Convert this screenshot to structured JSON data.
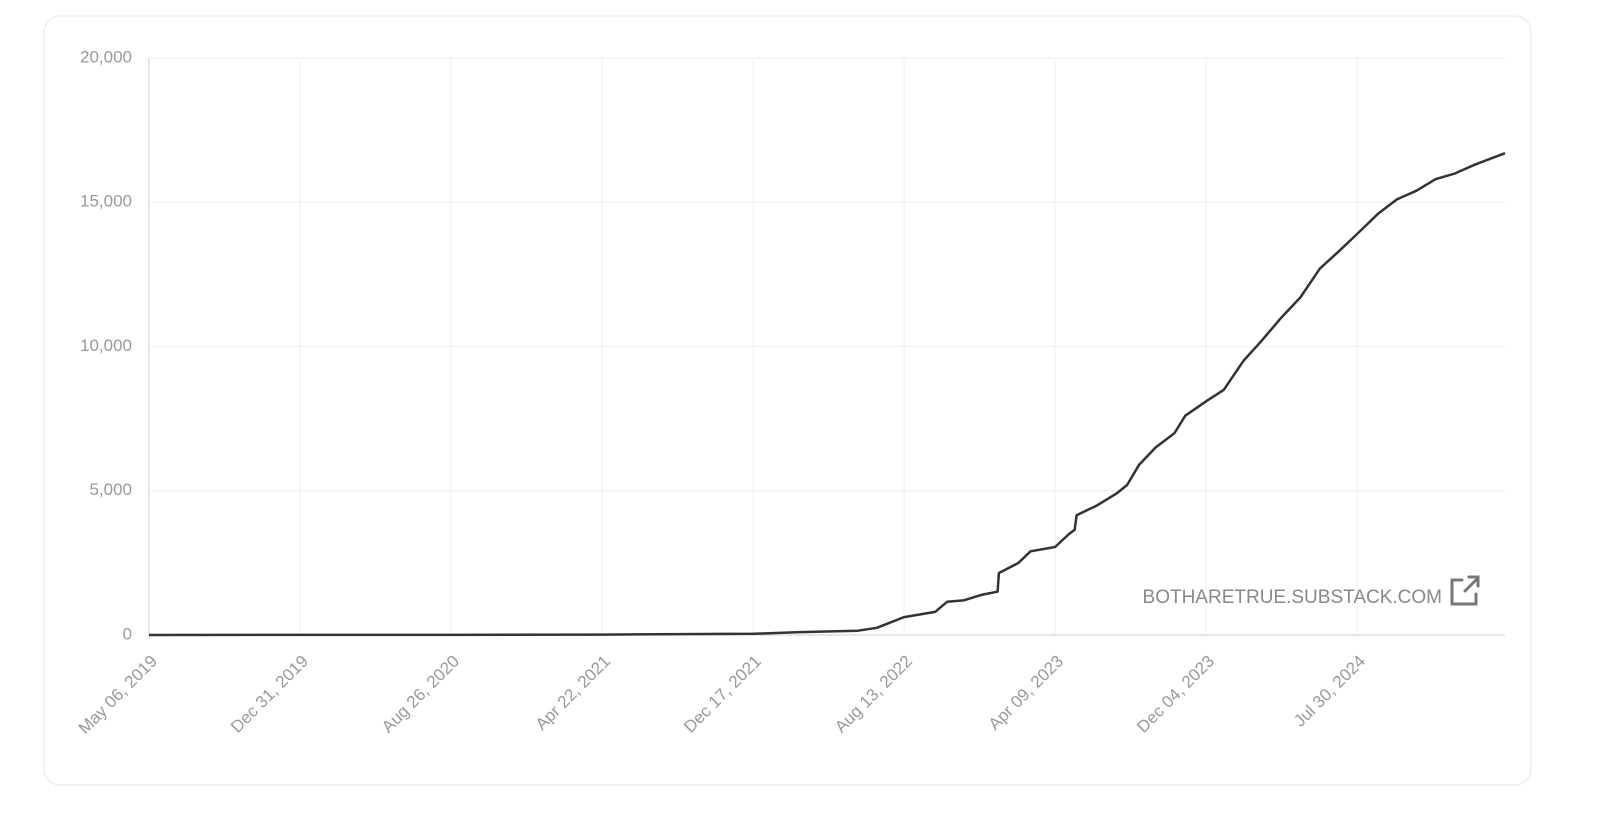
{
  "chart_data": {
    "type": "line",
    "annotation": "BOTHARETRUE.SUBSTACK.COM",
    "series": [
      {
        "color": "#333333",
        "x": [
          "2019-05-06",
          "2020-01-01",
          "2020-08-26",
          "2021-04-22",
          "2021-12-17",
          "2022-03-01",
          "2022-06-01",
          "2022-07-01",
          "2022-08-13",
          "2022-10-01",
          "2022-10-20",
          "2022-11-15",
          "2022-12-15",
          "2023-01-08",
          "2023-01-10",
          "2023-02-10",
          "2023-03-01",
          "2023-04-09",
          "2023-05-01",
          "2023-05-10",
          "2023-05-13",
          "2023-06-15",
          "2023-07-15",
          "2023-08-01",
          "2023-08-20",
          "2023-09-15",
          "2023-10-15",
          "2023-11-01",
          "2023-12-04",
          "2024-01-01",
          "2024-02-01",
          "2024-03-01",
          "2024-04-01",
          "2024-05-01",
          "2024-06-01",
          "2024-07-01",
          "2024-07-30",
          "2024-09-01",
          "2024-10-01",
          "2024-11-01",
          "2024-12-01",
          "2025-01-01",
          "2025-02-01",
          "2025-03-21"
        ],
        "values": [
          0,
          2,
          5,
          15,
          40,
          100,
          150,
          250,
          620,
          800,
          1150,
          1200,
          1400,
          1500,
          2150,
          2500,
          2900,
          3050,
          3500,
          3650,
          4150,
          4500,
          4900,
          5200,
          5900,
          6500,
          7000,
          7600,
          8100,
          8500,
          9500,
          10200,
          11000,
          11700,
          12700,
          13300,
          13900,
          14600,
          15100,
          15400,
          15800,
          16000,
          16300,
          16700
        ]
      }
    ],
    "xlim": [
      "2019-05-06",
      "2025-03-21"
    ],
    "xticks": [
      {
        "value": "2019-05-06",
        "label": "May 06, 2019"
      },
      {
        "value": "2019-12-31",
        "label": "Dec 31, 2019"
      },
      {
        "value": "2020-08-26",
        "label": "Aug 26, 2020"
      },
      {
        "value": "2021-04-22",
        "label": "Apr 22, 2021"
      },
      {
        "value": "2021-12-17",
        "label": "Dec 17, 2021"
      },
      {
        "value": "2022-08-13",
        "label": "Aug 13, 2022"
      },
      {
        "value": "2023-04-09",
        "label": "Apr 09, 2023"
      },
      {
        "value": "2023-12-04",
        "label": "Dec 04, 2023"
      },
      {
        "value": "2024-07-30",
        "label": "Jul 30, 2024"
      }
    ],
    "ylim": [
      0,
      20000
    ],
    "yticks": [
      0,
      {
        "value": 5000,
        "label": "5,000"
      },
      {
        "value": 10000,
        "label": "10,000"
      },
      {
        "value": 15000,
        "label": "15,000"
      },
      {
        "value": 20000,
        "label": "20,000"
      }
    ],
    "grid": true
  }
}
